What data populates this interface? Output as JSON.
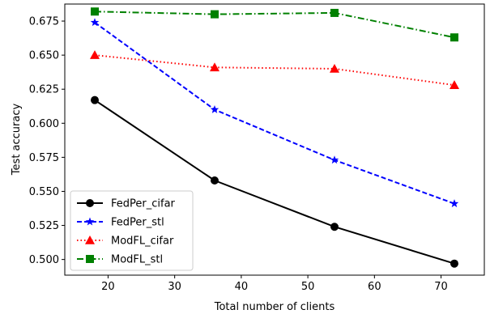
{
  "chart_data": {
    "type": "line",
    "title": "",
    "xlabel": "Total number of clients",
    "ylabel": "Test accuracy",
    "xlim": [
      13.5,
      76.5
    ],
    "ylim": [
      0.4885,
      0.6875
    ],
    "x_ticks": [
      20,
      30,
      40,
      50,
      60,
      70
    ],
    "y_ticks": [
      0.5,
      0.525,
      0.55,
      0.575,
      0.6,
      0.625,
      0.65,
      0.675
    ],
    "x": [
      18,
      36,
      54,
      72
    ],
    "grid": false,
    "legend_position": "lower-left",
    "series": [
      {
        "name": "FedPer_cifar",
        "values": [
          0.617,
          0.558,
          0.524,
          0.497
        ],
        "color": "#000000",
        "dash": "solid",
        "marker": "circle"
      },
      {
        "name": "FedPer_stl",
        "values": [
          0.674,
          0.61,
          0.573,
          0.541
        ],
        "color": "#0000ff",
        "dash": "dashed",
        "marker": "star"
      },
      {
        "name": "ModFL_cifar",
        "values": [
          0.65,
          0.641,
          0.64,
          0.628
        ],
        "color": "#ff0000",
        "dash": "dotted",
        "marker": "triangle"
      },
      {
        "name": "ModFL_stl",
        "values": [
          0.682,
          0.68,
          0.681,
          0.663
        ],
        "color": "#008000",
        "dash": "dashdot",
        "marker": "square"
      }
    ]
  }
}
